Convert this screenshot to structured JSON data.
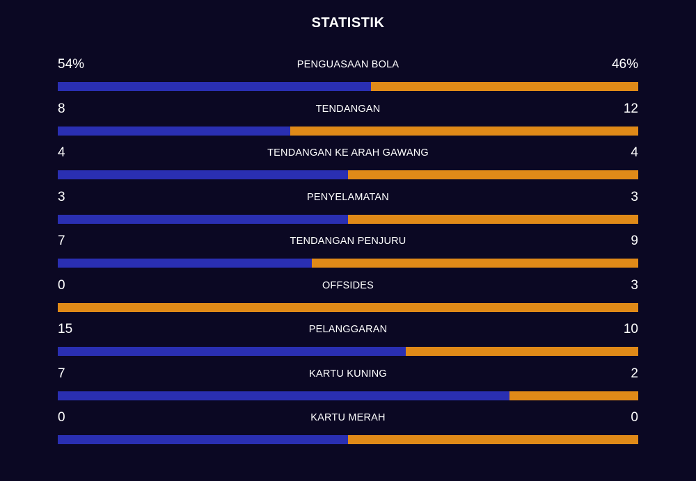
{
  "title": "STATISTIK",
  "colors": {
    "background": "#0b0823",
    "home": "#2a2fb2",
    "away": "#e08a18"
  },
  "stats": [
    {
      "label": "PENGUASAAN BOLA",
      "home": "54%",
      "away": "46%",
      "home_share": 0.54
    },
    {
      "label": "TENDANGAN",
      "home": "8",
      "away": "12",
      "home_share": 0.4
    },
    {
      "label": "TENDANGAN KE ARAH GAWANG",
      "home": "4",
      "away": "4",
      "home_share": 0.5
    },
    {
      "label": "PENYELAMATAN",
      "home": "3",
      "away": "3",
      "home_share": 0.5
    },
    {
      "label": "TENDANGAN PENJURU",
      "home": "7",
      "away": "9",
      "home_share": 0.4375
    },
    {
      "label": "OFFSIDES",
      "home": "0",
      "away": "3",
      "home_share": 0
    },
    {
      "label": "PELANGGARAN",
      "home": "15",
      "away": "10",
      "home_share": 0.6
    },
    {
      "label": "KARTU KUNING",
      "home": "7",
      "away": "2",
      "home_share": 0.7778
    },
    {
      "label": "KARTU MERAH",
      "home": "0",
      "away": "0",
      "home_share": 0.5
    }
  ]
}
